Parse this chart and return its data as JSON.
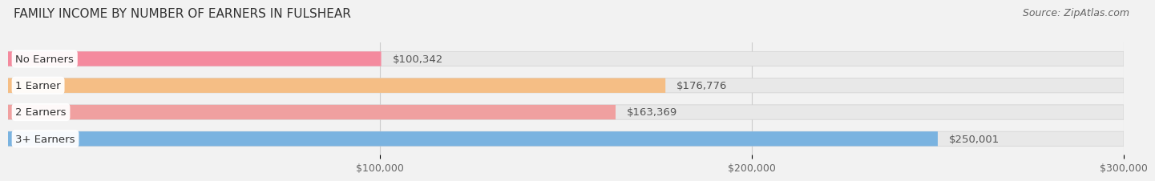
{
  "title": "FAMILY INCOME BY NUMBER OF EARNERS IN FULSHEAR",
  "source": "Source: ZipAtlas.com",
  "categories": [
    "No Earners",
    "1 Earner",
    "2 Earners",
    "3+ Earners"
  ],
  "values": [
    100342,
    176776,
    163369,
    250001
  ],
  "bar_colors": [
    "#f48a9e",
    "#f5be85",
    "#f0a0a0",
    "#7ab3e0"
  ],
  "value_labels": [
    "$100,342",
    "$176,776",
    "$163,369",
    "$250,001"
  ],
  "xlim": [
    0,
    300000
  ],
  "xticks": [
    100000,
    200000,
    300000
  ],
  "xtick_labels": [
    "$100,000",
    "$200,000",
    "$300,000"
  ],
  "bar_height": 0.55,
  "background_color": "#f2f2f2",
  "bar_background_color": "#e8e8e8",
  "title_fontsize": 11,
  "source_fontsize": 9,
  "label_fontsize": 9.5,
  "value_fontsize": 9.5,
  "tick_fontsize": 9
}
